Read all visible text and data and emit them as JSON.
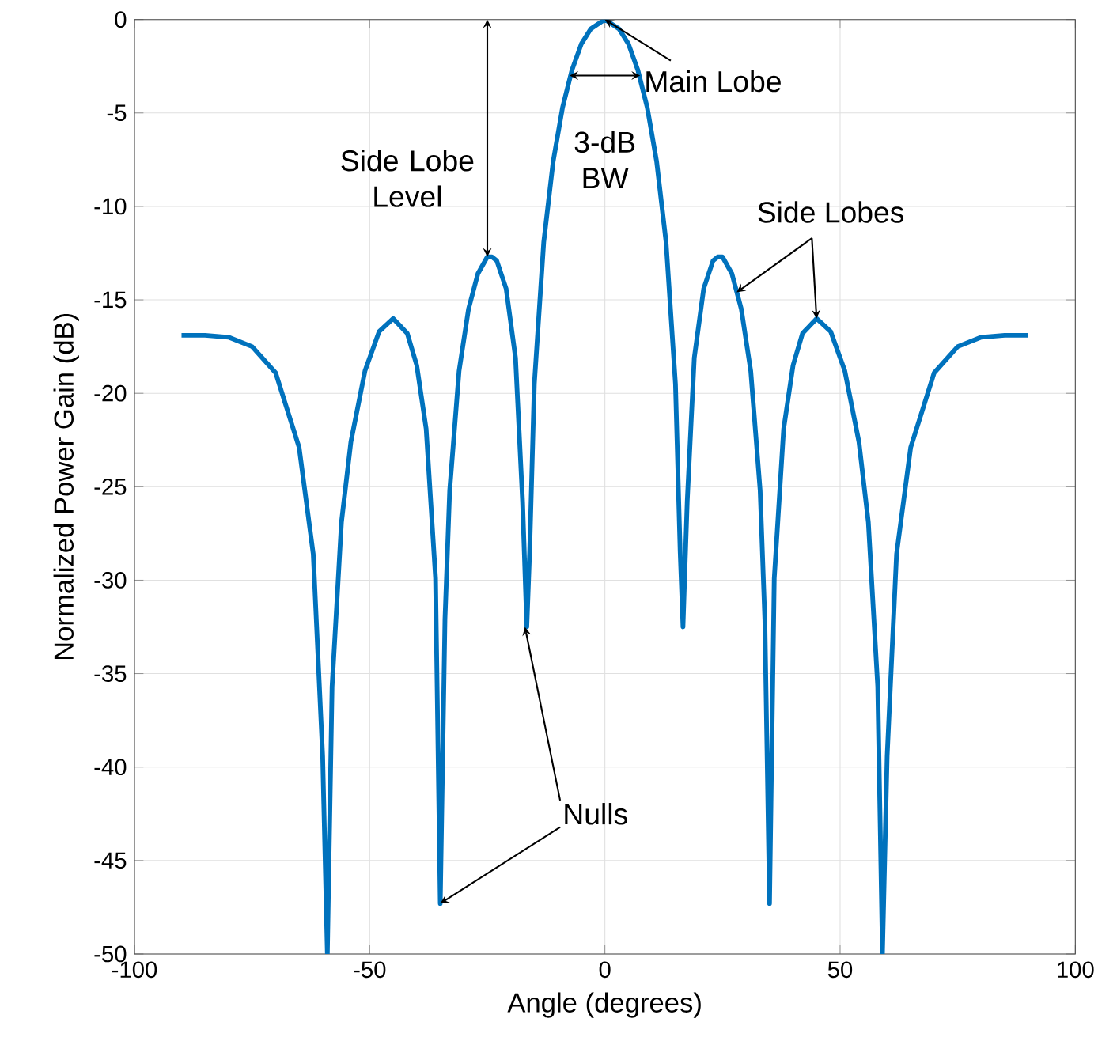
{
  "chart_data": {
    "type": "line",
    "xlabel": "Angle (degrees)",
    "ylabel": "Normalized Power Gain (dB)",
    "xlim": [
      -100,
      100
    ],
    "ylim": [
      -50,
      0
    ],
    "xticks": [
      -100,
      -50,
      0,
      50,
      100
    ],
    "yticks": [
      -50,
      -45,
      -40,
      -35,
      -30,
      -25,
      -20,
      -15,
      -10,
      -5,
      0
    ],
    "grid": true,
    "series": [
      {
        "color": "#0072bd",
        "x": [
          -90,
          -85,
          -80,
          -75,
          -70,
          -65,
          -62,
          -60,
          -59,
          -58,
          -56,
          -54,
          -51,
          -48,
          -45,
          -42,
          -40,
          -38,
          -36,
          -35,
          -34,
          -33,
          -31,
          -29,
          -27,
          -25,
          -24,
          -23,
          -21,
          -19,
          -17.5,
          -16.6,
          -16,
          -15,
          -13,
          -11,
          -9,
          -7,
          -5,
          -3,
          0,
          3,
          5,
          7,
          9,
          11,
          13,
          15,
          16,
          16.6,
          17.5,
          19,
          21,
          23,
          24,
          25,
          27,
          29,
          31,
          33,
          34,
          35,
          36,
          38,
          40,
          42,
          45,
          48,
          51,
          54,
          56,
          58,
          59,
          60,
          62,
          65,
          70,
          75,
          80,
          85,
          90
        ],
        "values": [
          -16.9,
          -16.9,
          -17,
          -17.5,
          -18.9,
          -22.9,
          -28.6,
          -39.4,
          -50,
          -35.7,
          -26.9,
          -22.6,
          -18.8,
          -16.7,
          -16,
          -16.8,
          -18.5,
          -21.9,
          -29.9,
          -47.3,
          -32.1,
          -25.2,
          -18.8,
          -15.5,
          -13.6,
          -12.7,
          -12.7,
          -12.9,
          -14.4,
          -18.1,
          -25.8,
          -32.5,
          -28.5,
          -19.5,
          -11.9,
          -7.6,
          -4.7,
          -2.7,
          -1.3,
          -0.5,
          0,
          -0.5,
          -1.3,
          -2.7,
          -4.7,
          -7.6,
          -11.9,
          -19.5,
          -28.5,
          -32.5,
          -25.8,
          -18.1,
          -14.4,
          -12.9,
          -12.7,
          -12.7,
          -13.6,
          -15.5,
          -18.8,
          -25.2,
          -32.1,
          -47.3,
          -29.9,
          -21.9,
          -18.5,
          -16.8,
          -16,
          -16.7,
          -18.8,
          -22.6,
          -26.9,
          -35.7,
          -50,
          -39.4,
          -28.6,
          -22.9,
          -18.9,
          -17.5,
          -17,
          -16.9,
          -16.9
        ]
      }
    ],
    "annotations": [
      {
        "text": "Main Lobe",
        "x": 0,
        "y": 0
      },
      {
        "text": "Side Lobe Level",
        "x": -25,
        "y": -12.7
      },
      "3-dB BW",
      {
        "text": "Side Lobes",
        "x": 45,
        "y": -16
      },
      {
        "text": "Nulls",
        "x": -17,
        "y": -32.5
      }
    ]
  }
}
